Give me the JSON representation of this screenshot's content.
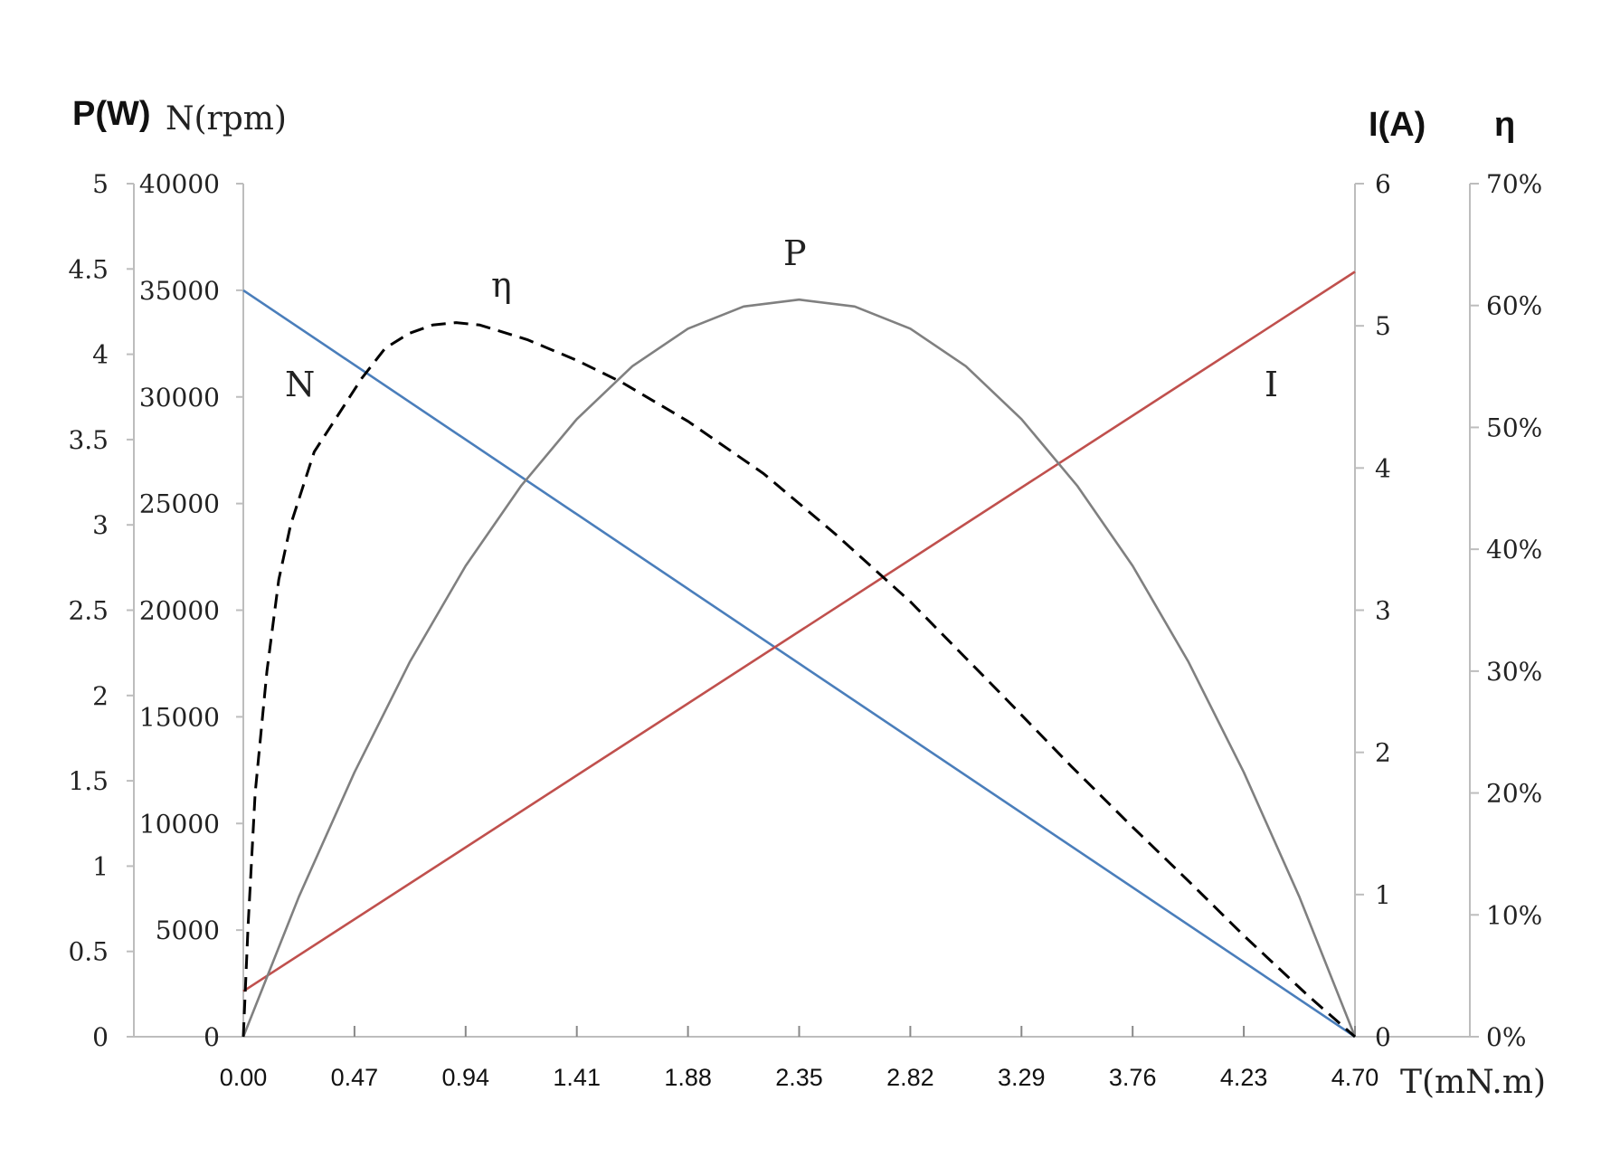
{
  "chart_data": {
    "type": "line",
    "axes": {
      "x": {
        "title": "T(mN.m)",
        "range": [
          0,
          4.7
        ],
        "ticks": [
          "0.00",
          "0.47",
          "0.94",
          "1.41",
          "1.88",
          "2.35",
          "2.82",
          "3.29",
          "3.76",
          "4.23",
          "4.70"
        ]
      },
      "y_power": {
        "title": "P(W)",
        "range": [
          0,
          5
        ],
        "ticks": [
          "0",
          "0.5",
          "1",
          "1.5",
          "2",
          "2.5",
          "3",
          "3.5",
          "4",
          "4.5",
          "5"
        ]
      },
      "y_speed": {
        "title": "N(rpm)",
        "range": [
          0,
          40000
        ],
        "ticks": [
          "0",
          "5000",
          "10000",
          "15000",
          "20000",
          "25000",
          "30000",
          "35000",
          "40000"
        ]
      },
      "y_current": {
        "title": "I(A)",
        "range": [
          0,
          6
        ],
        "ticks": [
          "0",
          "1",
          "2",
          "3",
          "4",
          "5",
          "6"
        ]
      },
      "y_efficiency": {
        "title": "η",
        "range": [
          0,
          0.7
        ],
        "ticks": [
          "0%",
          "10%",
          "20%",
          "30%",
          "40%",
          "50%",
          "60%",
          "70%"
        ]
      }
    },
    "series": [
      {
        "name": "N",
        "axis": "y_speed",
        "color": "#4a7ebb",
        "style": "solid",
        "x": [
          0,
          4.7
        ],
        "y": [
          35000,
          0
        ]
      },
      {
        "name": "I",
        "axis": "y_current",
        "color": "#c0504d",
        "style": "solid",
        "x": [
          0,
          4.7
        ],
        "y": [
          0.32,
          5.38
        ]
      },
      {
        "name": "P",
        "axis": "y_power",
        "color": "#808080",
        "style": "solid",
        "x": [
          0,
          0.235,
          0.47,
          0.705,
          0.94,
          1.175,
          1.41,
          1.645,
          1.88,
          2.115,
          2.35,
          2.585,
          2.82,
          3.055,
          3.29,
          3.525,
          3.76,
          3.995,
          4.23,
          4.465,
          4.7
        ],
        "y": [
          0,
          0.82,
          1.55,
          2.2,
          2.76,
          3.23,
          3.62,
          3.93,
          4.15,
          4.28,
          4.32,
          4.28,
          4.15,
          3.93,
          3.62,
          3.23,
          2.76,
          2.2,
          1.55,
          0.82,
          0
        ]
      },
      {
        "name": "η",
        "axis": "y_efficiency",
        "color": "#000000",
        "style": "dashed",
        "x": [
          0,
          0.02,
          0.05,
          0.1,
          0.15,
          0.2,
          0.3,
          0.4,
          0.5,
          0.6,
          0.7,
          0.8,
          0.9,
          1.0,
          1.2,
          1.41,
          1.6,
          1.88,
          2.2,
          2.5,
          2.82,
          3.2,
          3.5,
          3.76,
          4.0,
          4.23,
          4.5,
          4.7
        ],
        "y": [
          0,
          0.09,
          0.2,
          0.3,
          0.375,
          0.42,
          0.48,
          0.51,
          0.54,
          0.565,
          0.577,
          0.584,
          0.586,
          0.584,
          0.572,
          0.555,
          0.537,
          0.505,
          0.462,
          0.413,
          0.357,
          0.282,
          0.222,
          0.172,
          0.127,
          0.083,
          0.034,
          0
        ]
      }
    ],
    "curve_labels": [
      "N",
      "η",
      "P",
      "I"
    ]
  }
}
